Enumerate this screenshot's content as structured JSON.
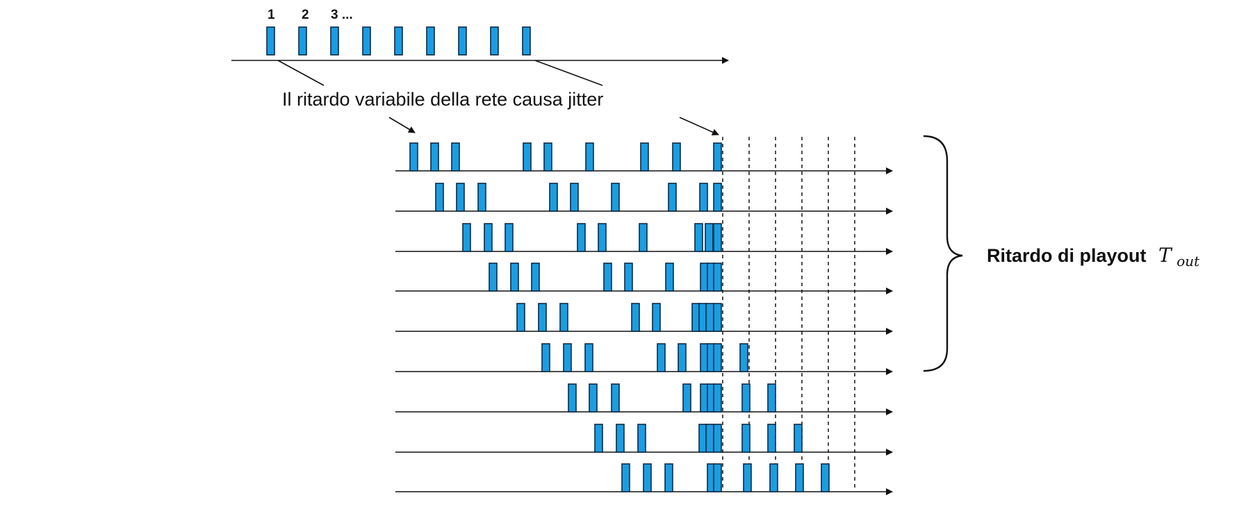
{
  "sequence_labels": [
    "1",
    "2",
    "3 ..."
  ],
  "caption": "Il ritardo variabile della rete causa jitter",
  "playout_label": "Ritardo di playout",
  "playout_symbol": "T",
  "playout_subscript": "out",
  "colors": {
    "packet_fill": "#1b9de2",
    "packet_border": "#0b2a45",
    "line": "#111111"
  },
  "packet_count_per_row": 9,
  "receiver_row_count": 9,
  "playout_bracket_rows": 6
}
